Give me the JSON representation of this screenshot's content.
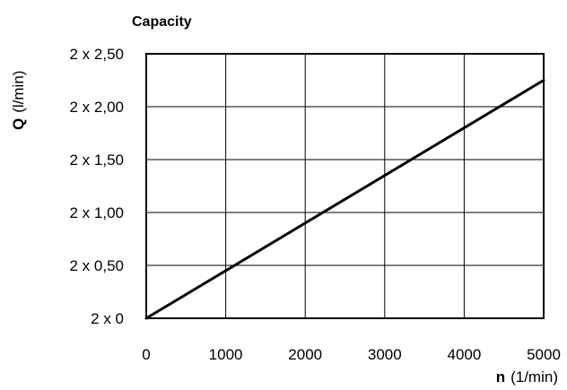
{
  "chart_data": {
    "type": "line",
    "title": "Capacity",
    "xlabel": {
      "symbol": "n",
      "unit": "(1/min)"
    },
    "ylabel": {
      "symbol": "Q",
      "unit": "(l/min)"
    },
    "xlim": [
      0,
      5000
    ],
    "ylim": [
      0,
      2.5
    ],
    "x_ticks": [
      0,
      1000,
      2000,
      3000,
      4000,
      5000
    ],
    "x_tick_labels": [
      "0",
      "1000",
      "2000",
      "3000",
      "4000",
      "5000"
    ],
    "y_ticks": [
      0,
      0.5,
      1.0,
      1.5,
      2.0,
      2.5
    ],
    "y_tick_labels": [
      "2 x 0",
      "2 x 0,50",
      "2 x 1,00",
      "2 x 1,50",
      "2 x 2,00",
      "2 x 2,50"
    ],
    "grid": true,
    "colors": {
      "line": "#000000",
      "grid": "#000000",
      "background": "#ffffff"
    },
    "series": [
      {
        "x": [
          0,
          5000
        ],
        "y": [
          0,
          2.25
        ]
      }
    ]
  }
}
